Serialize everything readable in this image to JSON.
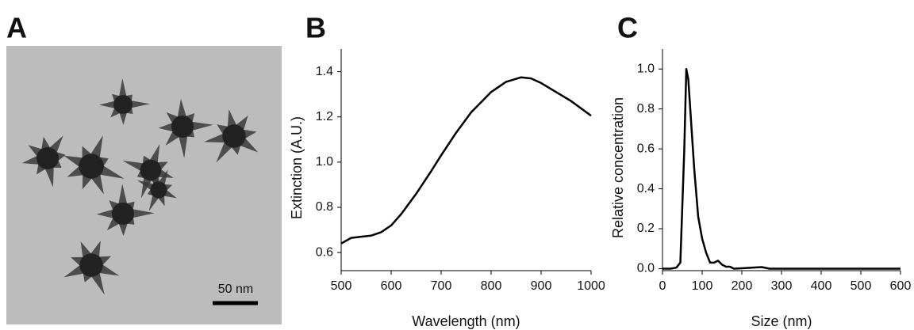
{
  "image_panel": {
    "panel_label": "A",
    "scale_bar": "50 nm"
  },
  "chart_data": [
    {
      "type": "line",
      "panel_label": "B",
      "x_label": "Wavelength (nm)",
      "y_label": "Extinction (A.U.)",
      "x": [
        500,
        520,
        540,
        560,
        580,
        600,
        620,
        650,
        680,
        700,
        730,
        760,
        800,
        830,
        860,
        880,
        900,
        930,
        960,
        1000
      ],
      "series": [
        {
          "color": "#000000",
          "values": [
            0.64,
            0.665,
            0.67,
            0.675,
            0.69,
            0.72,
            0.77,
            0.86,
            0.96,
            1.03,
            1.13,
            1.22,
            1.31,
            1.355,
            1.375,
            1.37,
            1.35,
            1.31,
            1.27,
            1.205
          ]
        }
      ],
      "xlim": [
        500,
        1000
      ],
      "xticks": [
        500,
        600,
        700,
        800,
        900,
        1000
      ],
      "ylim": [
        0.52,
        1.5
      ],
      "yticks": [
        0.6,
        0.8,
        {
          "value": 1,
          "label": "1.0"
        },
        1.2,
        1.4
      ]
    },
    {
      "type": "line",
      "panel_label": "C",
      "x_label": "Size (nm)",
      "y_label": "Relative concentration",
      "x": [
        0,
        20,
        35,
        45,
        55,
        60,
        65,
        70,
        80,
        90,
        100,
        110,
        120,
        130,
        140,
        150,
        160,
        170,
        180,
        200,
        250,
        270,
        300,
        400,
        500,
        600
      ],
      "series": [
        {
          "color": "#000000",
          "values": [
            0,
            0,
            0.005,
            0.03,
            0.6,
            1.0,
            0.95,
            0.8,
            0.5,
            0.26,
            0.15,
            0.08,
            0.03,
            0.03,
            0.04,
            0.02,
            0.01,
            0.01,
            0,
            0.002,
            0.008,
            0,
            0,
            0,
            0,
            0
          ]
        }
      ],
      "xlim": [
        0,
        600
      ],
      "xticks": [
        0,
        100,
        200,
        300,
        400,
        500,
        600
      ],
      "ylim": [
        -0.01,
        1.1
      ],
      "yticks": [
        {
          "value": 0,
          "label": "0.0"
        },
        0.2,
        0.4,
        0.6,
        0.8,
        {
          "value": 1,
          "label": "1.0"
        }
      ]
    }
  ]
}
